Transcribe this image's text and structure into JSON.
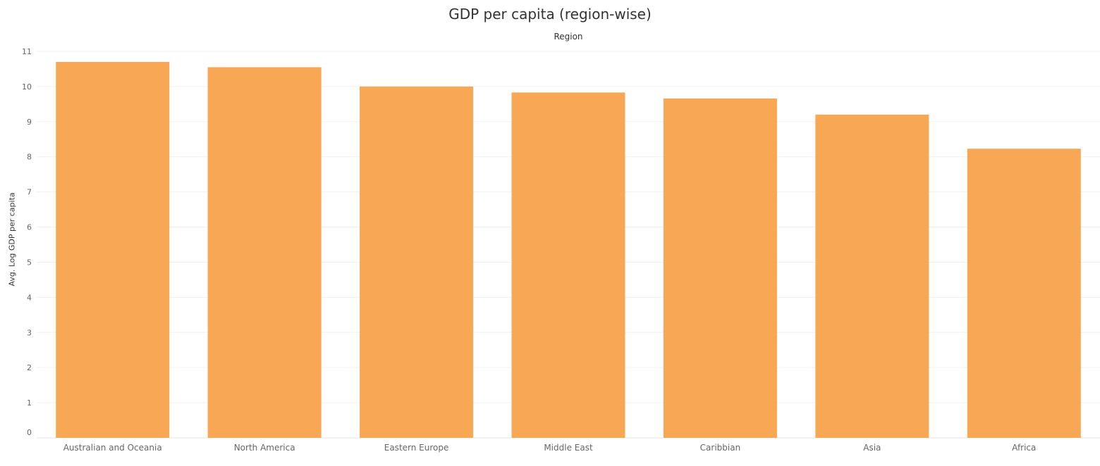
{
  "chart_data": {
    "type": "bar",
    "title": "GDP per capita (region-wise)",
    "column_header": "Region",
    "xlabel": "",
    "ylabel": "Avg. Log GDP per capita",
    "categories": [
      "Australian and Oceania",
      "North America",
      "Eastern Europe",
      "Middle East",
      "Caribbian",
      "Asia",
      "Africa"
    ],
    "values": [
      10.7,
      10.55,
      10.0,
      9.83,
      9.66,
      9.2,
      8.23
    ],
    "ylim": [
      0,
      11
    ],
    "yticks": [
      "0",
      "1",
      "2",
      "3",
      "4",
      "5",
      "6",
      "7",
      "8",
      "9",
      "10",
      "11"
    ],
    "grid": true,
    "bar_color": "#F8A754",
    "legend": "none"
  }
}
